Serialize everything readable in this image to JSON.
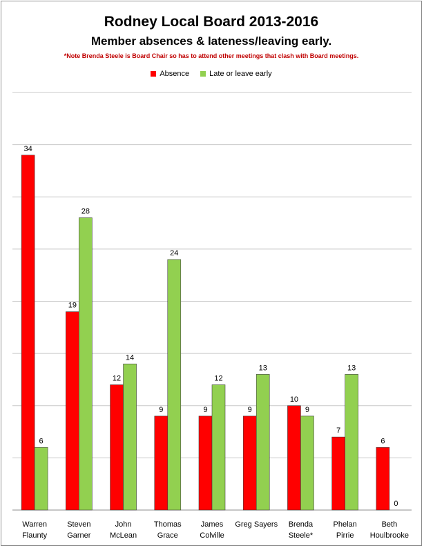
{
  "chart_data": {
    "type": "bar",
    "title": "Rodney Local Board 2013-2016",
    "subtitle": "Member absences & lateness/leaving early.",
    "note": "*Note Brenda Steele is Board Chair so has to attend other meetings that clash with Board meetings.",
    "categories": [
      [
        "Warren",
        "Flaunty"
      ],
      [
        "Steven",
        "Garner"
      ],
      [
        "John",
        "McLean"
      ],
      [
        "Thomas",
        "Grace"
      ],
      [
        "James",
        "Colville"
      ],
      [
        "Greg Sayers",
        ""
      ],
      [
        "Brenda",
        "Steele*"
      ],
      [
        "Phelan",
        "Pirrie"
      ],
      [
        "Beth",
        "Houlbrooke"
      ]
    ],
    "series": [
      {
        "name": "Absence",
        "color": "#ff0000",
        "values": [
          34,
          19,
          12,
          9,
          9,
          9,
          10,
          7,
          6
        ]
      },
      {
        "name": "Late or leave early",
        "color": "#92d050",
        "values": [
          6,
          28,
          14,
          24,
          12,
          13,
          9,
          13,
          0
        ]
      }
    ],
    "ylim": [
      0,
      40
    ],
    "grid": true,
    "legend": "top"
  }
}
